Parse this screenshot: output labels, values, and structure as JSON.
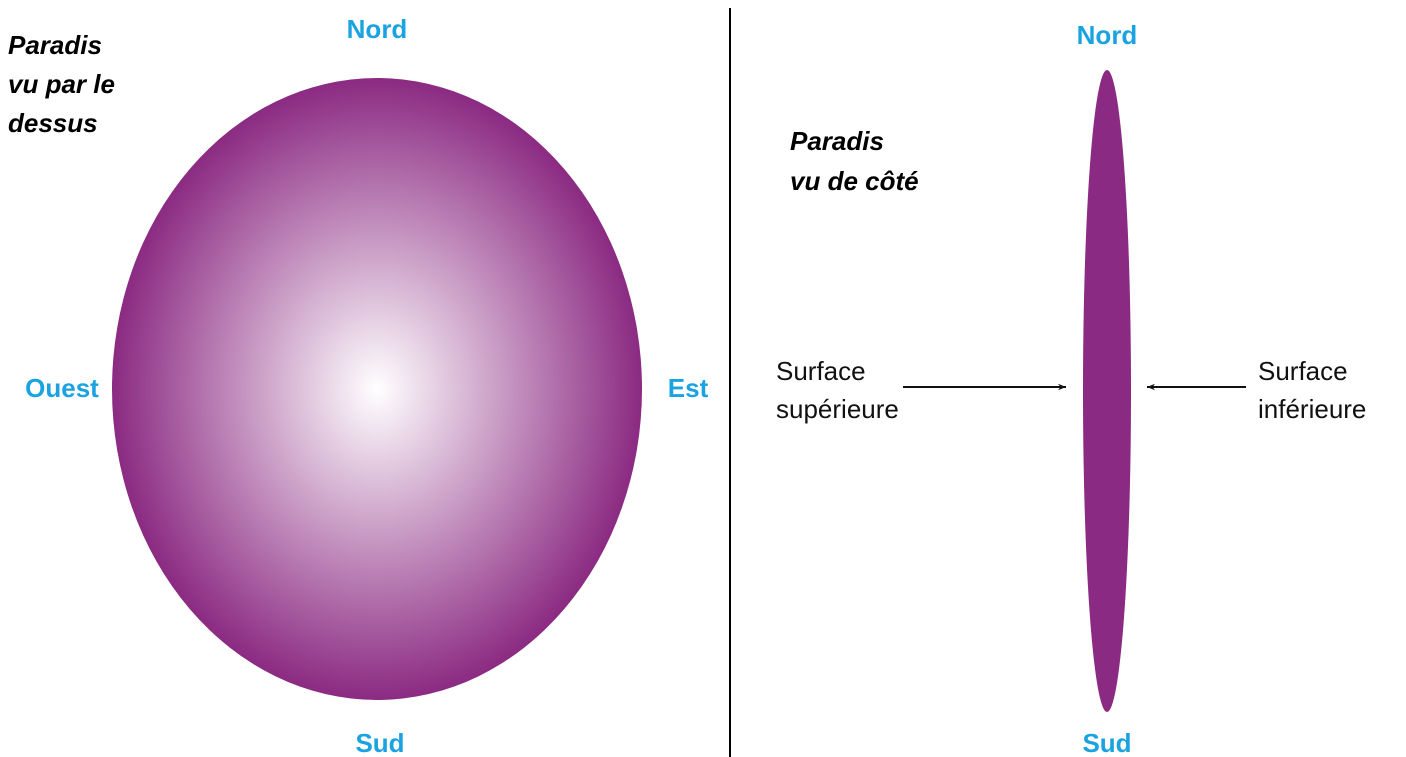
{
  "left": {
    "title": [
      "Paradis",
      "vu par le",
      "dessus"
    ],
    "north": "Nord",
    "south": "Sud",
    "west": "Ouest",
    "east": "Est"
  },
  "right": {
    "title": [
      "Paradis",
      "vu de côté"
    ],
    "north": "Nord",
    "south": "Sud",
    "upper_surface": [
      "Surface",
      "supérieure"
    ],
    "lower_surface": [
      "Surface",
      "inférieure"
    ]
  }
}
